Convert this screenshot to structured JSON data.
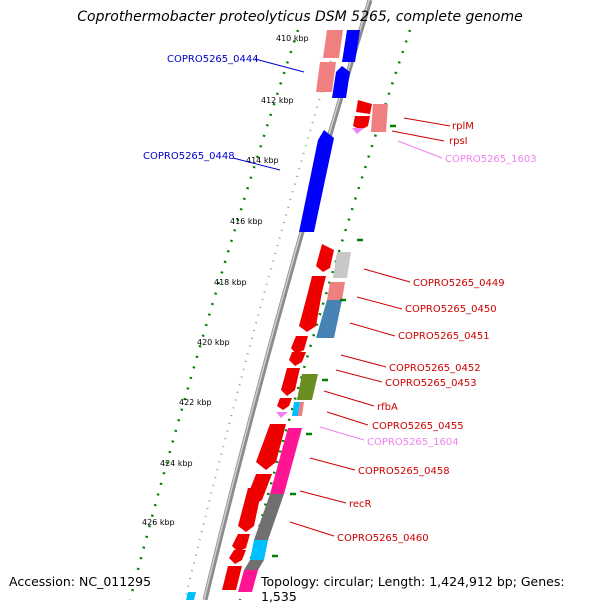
{
  "title": "Coprothermobacter proteolyticus DSM 5265, complete genome",
  "footer": {
    "accession": "Accession: NC_011295",
    "summary": "Topology: circular; Length: 1,424,912 bp; Genes: 1,535"
  },
  "ruler_ticks": [
    "410 kbp",
    "412 kbp",
    "414 kbp",
    "416 kbp",
    "418 kbp",
    "420 kbp",
    "422 kbp",
    "424 kbp",
    "426 kbp"
  ],
  "left_labels": [
    "COPRO5265_0444",
    "COPRO5265_0448"
  ],
  "right_labels": [
    "rplM",
    "rpsI",
    "COPRO5265_1603",
    "COPRO5265_0449",
    "COPRO5265_0450",
    "COPRO5265_0451",
    "COPRO5265_0452",
    "COPRO5265_0453",
    "rfbA",
    "COPRO5265_0455",
    "COPRO5265_1604",
    "COPRO5265_0458",
    "recR",
    "COPRO5265_0460"
  ],
  "colors": {
    "backbone": "#8c8c8c",
    "gene_red": "#ee0000",
    "gene_pink": "#f08080",
    "gene_blue": "#0000ff",
    "gene_steelblue": "#4682b4",
    "gene_olive": "#6b8e23",
    "gene_magenta": "#ff1493",
    "gene_gray": "#707070",
    "gene_cyan": "#00bfff",
    "label_red": "#cc0000",
    "label_blue": "#0000cc",
    "label_pink": "#ee82ee",
    "tick_green": "#008000"
  }
}
